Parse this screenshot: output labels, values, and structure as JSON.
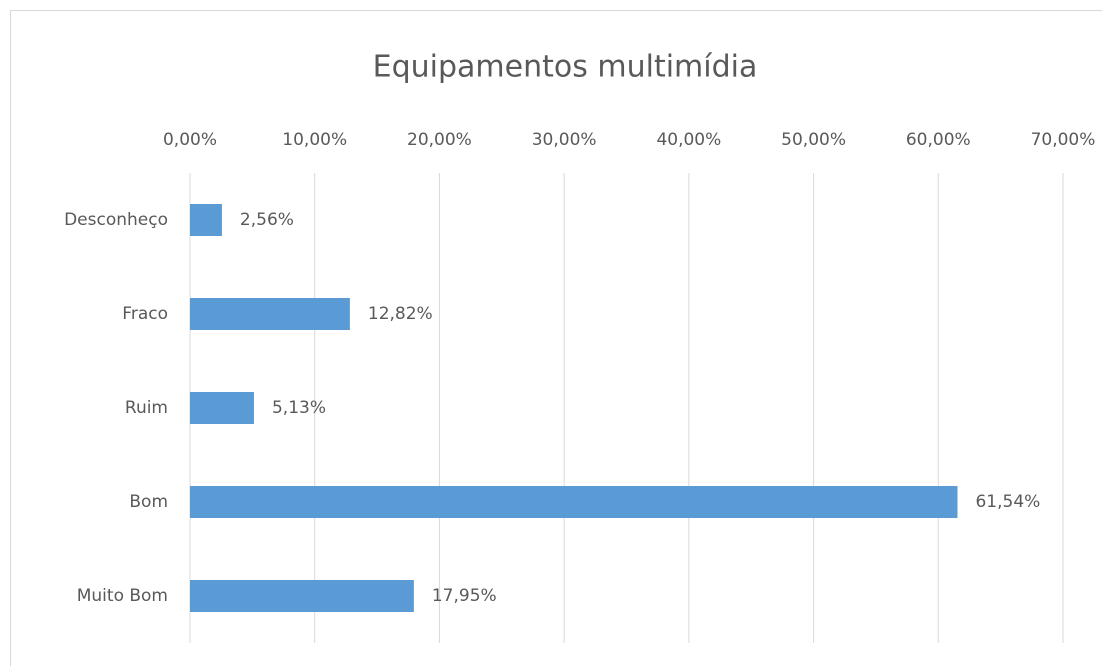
{
  "chart_data": {
    "type": "bar",
    "orientation": "horizontal",
    "title": "Equipamentos multimídia",
    "categories": [
      "Desconheço",
      "Fraco",
      "Ruim",
      "Bom",
      "Muito Bom"
    ],
    "values": [
      2.56,
      12.82,
      5.13,
      61.54,
      17.95
    ],
    "value_labels": [
      "2,56%",
      "12,82%",
      "5,13%",
      "61,54%",
      "17,95%"
    ],
    "color": "#5b9bd5",
    "xlim": [
      0,
      70
    ],
    "xticks": [
      {
        "value": 0,
        "label": "0,00%"
      },
      {
        "value": 10,
        "label": "10,00%"
      },
      {
        "value": 20,
        "label": "20,00%"
      },
      {
        "value": 30,
        "label": "30,00%"
      },
      {
        "value": 40,
        "label": "40,00%"
      },
      {
        "value": 50,
        "label": "50,00%"
      },
      {
        "value": 60,
        "label": "60,00%"
      },
      {
        "value": 70,
        "label": "70,00%"
      }
    ],
    "grid": true
  }
}
